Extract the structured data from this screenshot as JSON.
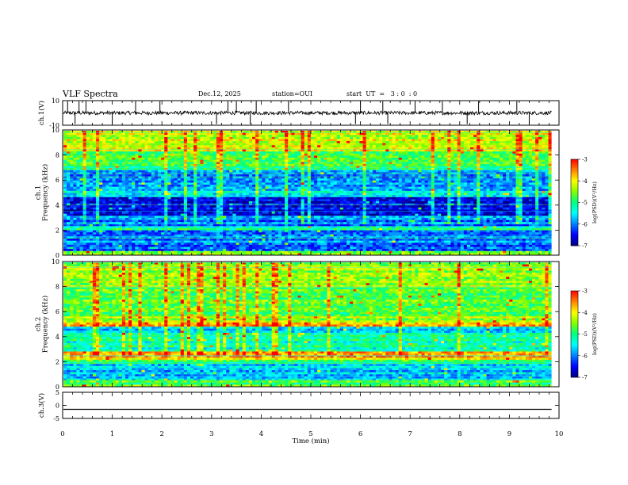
{
  "header": {
    "title": "VLF Spectra",
    "date": "Dec.12, 2025",
    "station": "station=OUI",
    "start": "start  UT  =   3 : 0  : 0"
  },
  "chart_data": [
    {
      "type": "line",
      "ylabel": "ch.1(V)",
      "ylim": [
        -10,
        10
      ],
      "yticks": [
        "10",
        "-10"
      ],
      "series": [
        {
          "values_description": "",
          "baseline": 0,
          "noise_amplitude": 1.5
        }
      ],
      "spikes_min": [
        0.1,
        0.25,
        0.33,
        0.47,
        1.0,
        1.47,
        1.96,
        3.1,
        3.33,
        3.5,
        3.78,
        3.9,
        4.55,
        5.9,
        6.0,
        6.45,
        6.55,
        7.1,
        7.65,
        8.15,
        8.38,
        9.15,
        9.4
      ],
      "color": "#000000"
    },
    {
      "type": "heatmap",
      "ylabel": "ch.1\nFrequency (kHz)",
      "ylim": [
        0,
        10
      ],
      "yticks": [
        "0",
        "2",
        "4",
        "6",
        "8",
        "10"
      ],
      "xlim": [
        0,
        9.85
      ],
      "colorbar": {
        "label": "log(PSD)(V²/Hz)",
        "range": [
          -7,
          -3
        ],
        "ticks": [
          "-3",
          "-4",
          "-5",
          "-6",
          "-7"
        ]
      },
      "bands_khz": [
        {
          "from": 0,
          "to": 0.3,
          "level": -4.6
        },
        {
          "from": 0.3,
          "to": 1.0,
          "level": -6.2
        },
        {
          "from": 1.0,
          "to": 2.0,
          "level": -6.0
        },
        {
          "from": 2.0,
          "to": 2.4,
          "level": -5.2
        },
        {
          "from": 2.4,
          "to": 3.2,
          "level": -6.0
        },
        {
          "from": 3.2,
          "to": 4.6,
          "level": -6.5
        },
        {
          "from": 4.6,
          "to": 5.2,
          "level": -5.4
        },
        {
          "from": 5.2,
          "to": 6.8,
          "level": -5.9
        },
        {
          "from": 6.8,
          "to": 8.3,
          "level": -4.8
        },
        {
          "from": 8.3,
          "to": 10,
          "level": -4.2
        }
      ]
    },
    {
      "type": "heatmap",
      "ylabel": "ch.2\nFrequency (kHz)",
      "ylim": [
        0,
        10
      ],
      "yticks": [
        "0",
        "2",
        "4",
        "6",
        "8",
        "10"
      ],
      "xlim": [
        0,
        9.85
      ],
      "colorbar": {
        "label": "log(PSD)(V²/Hz)",
        "range": [
          -7,
          -3
        ],
        "ticks": [
          "-3",
          "-4",
          "-5",
          "-6",
          "-7"
        ]
      },
      "bands_khz": [
        {
          "from": 0,
          "to": 0.5,
          "level": -4.8
        },
        {
          "from": 0.5,
          "to": 1.8,
          "level": -5.7
        },
        {
          "from": 1.8,
          "to": 2.2,
          "level": -5.0
        },
        {
          "from": 2.2,
          "to": 2.8,
          "level": -3.8
        },
        {
          "from": 2.8,
          "to": 4.4,
          "level": -5.2
        },
        {
          "from": 4.4,
          "to": 4.8,
          "level": -5.6
        },
        {
          "from": 4.8,
          "to": 5.2,
          "level": -3.7
        },
        {
          "from": 5.2,
          "to": 5.6,
          "level": -4.4
        },
        {
          "from": 5.6,
          "to": 8.0,
          "level": -4.7
        },
        {
          "from": 8.0,
          "to": 10,
          "level": -4.4
        }
      ]
    },
    {
      "type": "line",
      "ylabel": "ch.3(V)",
      "ylim": [
        -5,
        5
      ],
      "yticks": [
        "5",
        "0",
        "-5"
      ],
      "series": [
        {
          "baseline": -1.5
        }
      ],
      "color": "#000000"
    }
  ],
  "xaxis": {
    "xlabel": "Time  (min)",
    "xlim": [
      0,
      10
    ],
    "ticks": [
      "0",
      "1",
      "2",
      "3",
      "4",
      "5",
      "6",
      "7",
      "8",
      "9",
      "10"
    ]
  },
  "colormap": [
    "#000080",
    "#0000ff",
    "#0080ff",
    "#00ffff",
    "#00ff80",
    "#80ff00",
    "#ffff00",
    "#ff8000",
    "#ff0000",
    "#ffffff"
  ]
}
